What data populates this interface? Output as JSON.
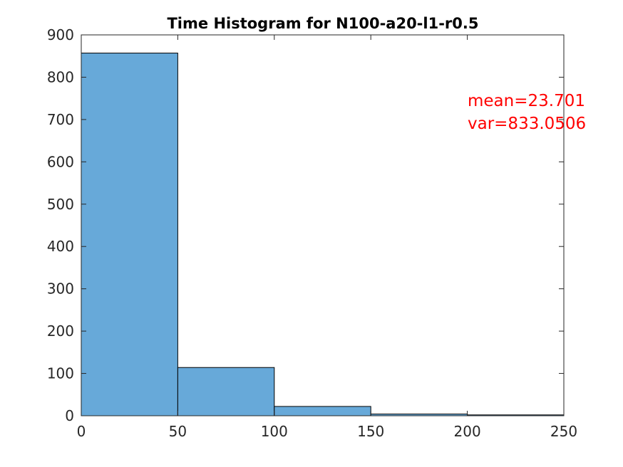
{
  "chart_data": {
    "type": "bar",
    "title": "Time Histogram for N100-a20-l1-r0.5",
    "xlabel": "",
    "ylabel": "",
    "bin_edges": [
      0,
      50,
      100,
      150,
      200,
      250
    ],
    "values": [
      857,
      114,
      22,
      4,
      2
    ],
    "xlim": [
      0,
      250
    ],
    "ylim": [
      0,
      900
    ],
    "xticks": [
      "0",
      "50",
      "100",
      "150",
      "200",
      "250"
    ],
    "yticks": [
      "0",
      "100",
      "200",
      "300",
      "400",
      "500",
      "600",
      "700",
      "800",
      "900"
    ],
    "grid": false,
    "bar_color": "#67a9d9",
    "annotations": {
      "mean": "mean=23.701",
      "var": "var=833.0506",
      "color": "#ff0000"
    }
  }
}
